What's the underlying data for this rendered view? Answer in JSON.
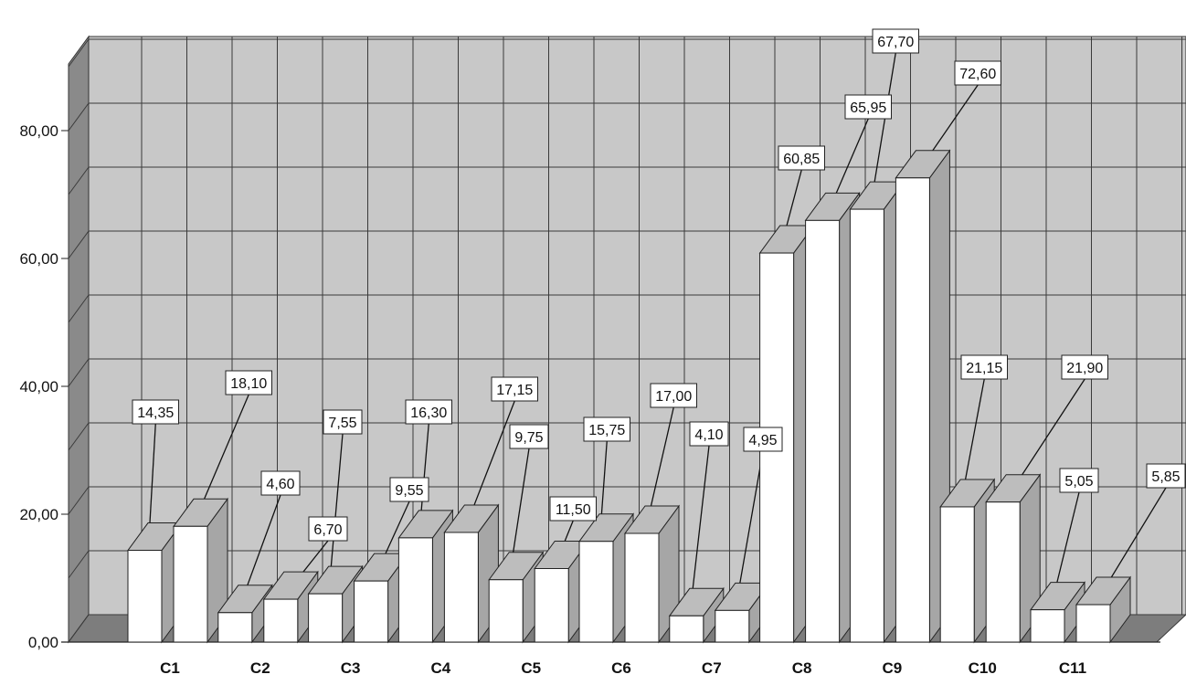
{
  "chart_data": {
    "type": "bar",
    "title": "",
    "xlabel": "",
    "ylabel": "",
    "ylim": [
      0,
      80
    ],
    "y_ticks": [
      "0,00",
      "20,00",
      "40,00",
      "60,00",
      "80,00"
    ],
    "grid": "on",
    "legend": "none",
    "style": "3d",
    "categories": [
      "C1",
      "C2",
      "C3",
      "C4",
      "C5",
      "C6",
      "C7",
      "C8",
      "C9",
      "C10",
      "C11"
    ],
    "series": [
      {
        "values": [
          14.35,
          4.6,
          7.55,
          16.3,
          9.75,
          15.75,
          4.1,
          60.85,
          67.7,
          21.15,
          5.05
        ],
        "labels": [
          "14,35",
          "4,60",
          "7,55",
          "16,30",
          "9,75",
          "15,75",
          "4,10",
          "60,85",
          "67,70",
          "21,15",
          "5,05"
        ]
      },
      {
        "values": [
          18.1,
          6.7,
          9.55,
          17.15,
          11.5,
          17.0,
          4.95,
          65.95,
          72.6,
          21.9,
          5.85
        ],
        "labels": [
          "18,10",
          "6,70",
          "9,55",
          "17,15",
          "11,50",
          "17,00",
          "4,95",
          "65,95",
          "72,60",
          "21,90",
          "5,85"
        ]
      }
    ],
    "colors": {
      "wall": "#c8c8c8",
      "floor": "#7d7d7d",
      "left_wall": "#8a8a8a",
      "bar_front": "#ffffff",
      "bar_side": "#a6a6a6",
      "bar_top": "#bdbdbd",
      "grid": "#3a3a3a"
    }
  }
}
